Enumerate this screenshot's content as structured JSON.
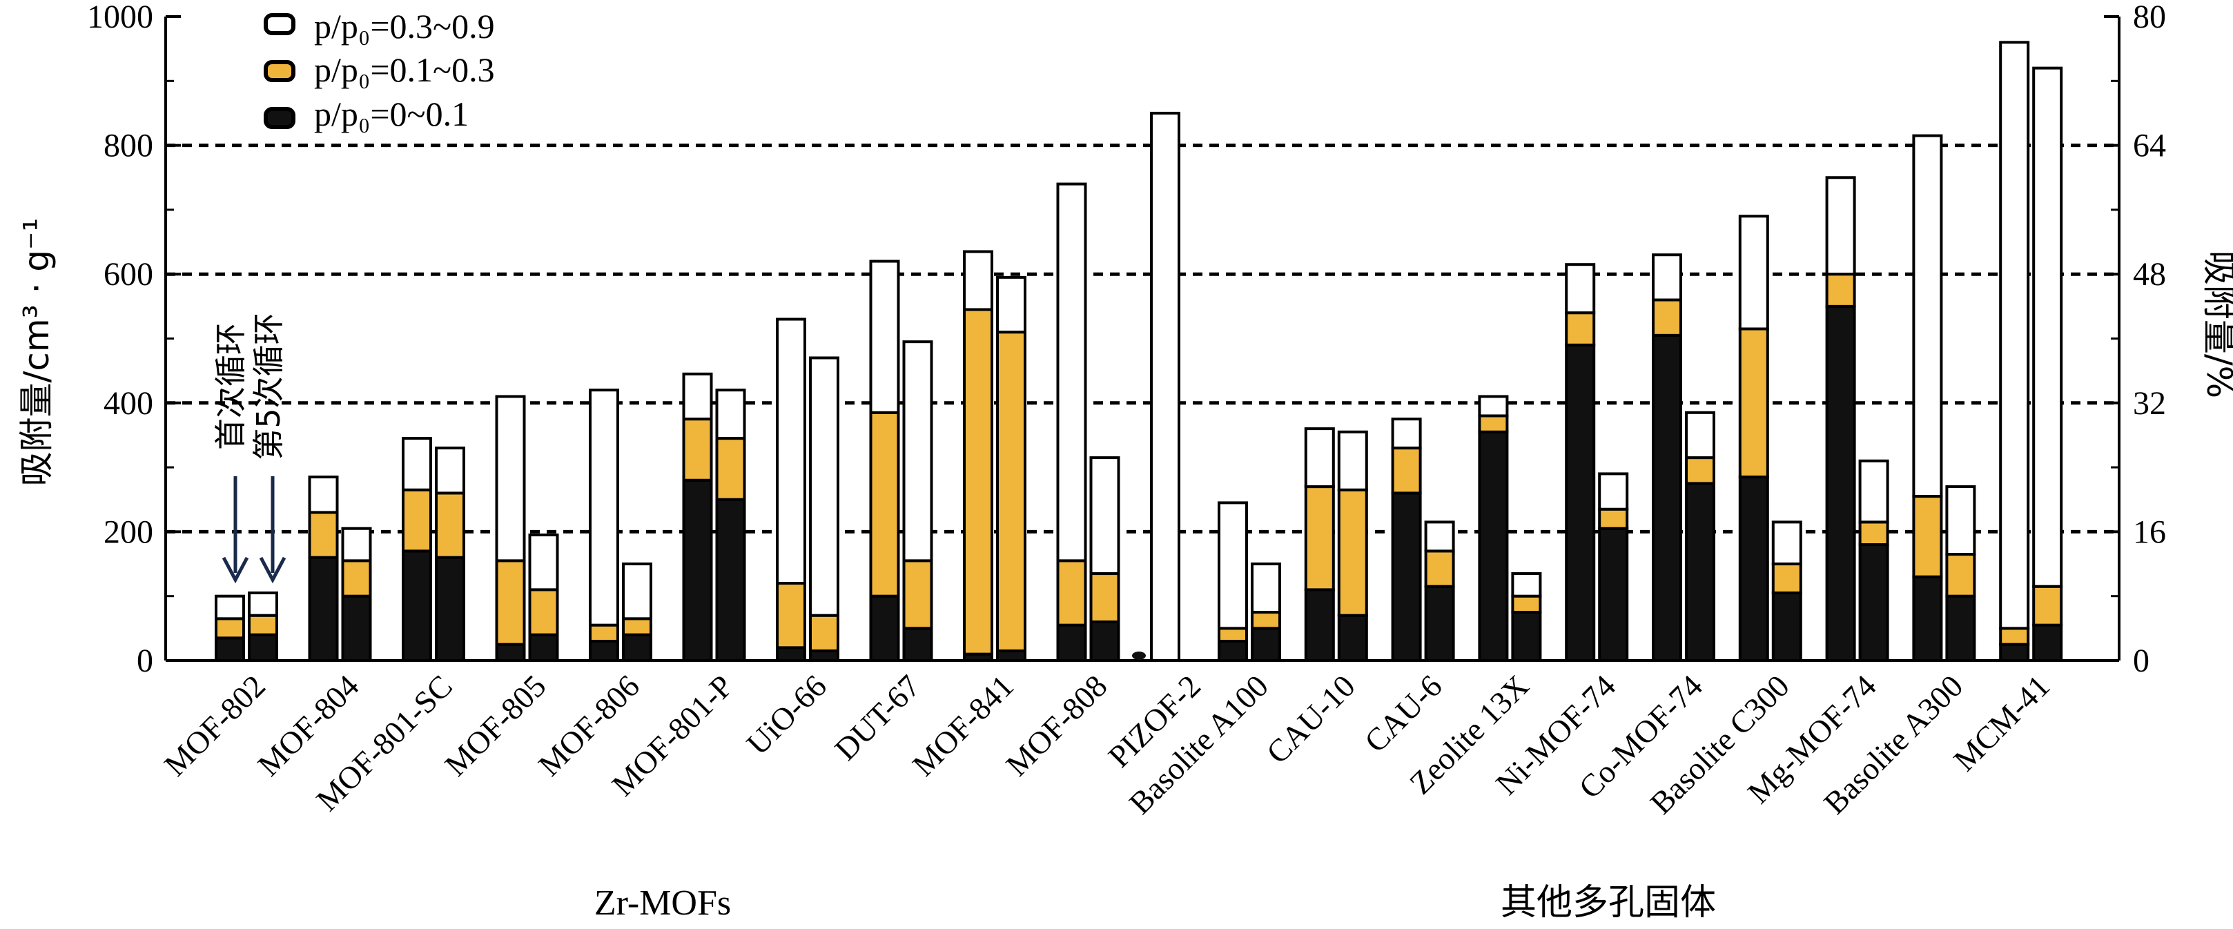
{
  "chart_data": {
    "type": "bar",
    "subtype": "stacked-grouped",
    "ylabel_left": "吸附量/cm³ · g⁻¹",
    "ylabel_right": "吸附量/%",
    "ylim_left": [
      0,
      1000
    ],
    "ylim_right": [
      0,
      80
    ],
    "yticks_left": [
      "0",
      "200",
      "400",
      "600",
      "800",
      "1000"
    ],
    "yticks_right": [
      "0",
      "16",
      "32",
      "48",
      "64",
      "80"
    ],
    "gridlines_at": [
      200,
      400,
      600,
      800
    ],
    "colors": {
      "low": "#111111",
      "mid": "#f0b63c",
      "high": "#ffffff"
    },
    "legend": [
      {
        "key": "high",
        "label": "p/p₀=0.3~0.9"
      },
      {
        "key": "mid",
        "label": "p/p₀=0.1~0.3"
      },
      {
        "key": "low",
        "label": "p/p₀=0~0.1"
      }
    ],
    "annotations": {
      "first_cycle": "首次循环",
      "fifth_cycle": "第5次循环"
    },
    "groups": [
      {
        "label": "Zr-MOFs",
        "categories": [
          {
            "name": "MOF-802",
            "first": [
              35,
              65,
              100
            ],
            "fifth": [
              40,
              70,
              105
            ]
          },
          {
            "name": "MOF-804",
            "first": [
              160,
              230,
              285
            ],
            "fifth": [
              100,
              155,
              205
            ]
          },
          {
            "name": "MOF-801-SC",
            "first": [
              170,
              265,
              345
            ],
            "fifth": [
              160,
              260,
              330
            ]
          },
          {
            "name": "MOF-805",
            "first": [
              25,
              155,
              410
            ],
            "fifth": [
              40,
              110,
              195
            ]
          },
          {
            "name": "MOF-806",
            "first": [
              30,
              55,
              420
            ],
            "fifth": [
              40,
              65,
              150
            ]
          },
          {
            "name": "MOF-801-P",
            "first": [
              280,
              375,
              445
            ],
            "fifth": [
              250,
              345,
              420
            ]
          },
          {
            "name": "UiO-66",
            "first": [
              20,
              120,
              530
            ],
            "fifth": [
              15,
              70,
              470
            ]
          },
          {
            "name": "DUT-67",
            "first": [
              100,
              385,
              620
            ],
            "fifth": [
              50,
              155,
              495
            ]
          },
          {
            "name": "MOF-841",
            "first": [
              10,
              545,
              635
            ],
            "fifth": [
              15,
              510,
              595
            ]
          },
          {
            "name": "MOF-808",
            "first": [
              55,
              155,
              740
            ],
            "fifth": [
              60,
              135,
              315
            ]
          },
          {
            "name": "PIZOF-2",
            "first": [
              0,
              0,
              850
            ],
            "fifth": null
          }
        ]
      },
      {
        "label": "其他多孔固体",
        "categories": [
          {
            "name": "Basolite A100",
            "first": [
              30,
              50,
              245
            ],
            "fifth": [
              50,
              75,
              150
            ]
          },
          {
            "name": "CAU-10",
            "first": [
              110,
              270,
              360
            ],
            "fifth": [
              70,
              265,
              355
            ]
          },
          {
            "name": "CAU-6",
            "first": [
              260,
              330,
              375
            ],
            "fifth": [
              115,
              170,
              215
            ]
          },
          {
            "name": "Zeolite 13X",
            "first": [
              355,
              380,
              410
            ],
            "fifth": [
              75,
              100,
              135
            ]
          },
          {
            "name": "Ni-MOF-74",
            "first": [
              490,
              540,
              615
            ],
            "fifth": [
              205,
              235,
              290
            ]
          },
          {
            "name": "Co-MOF-74",
            "first": [
              505,
              560,
              630
            ],
            "fifth": [
              275,
              315,
              385
            ]
          },
          {
            "name": "Basolite C300",
            "first": [
              285,
              515,
              690
            ],
            "fifth": [
              105,
              150,
              215
            ]
          },
          {
            "name": "Mg-MOF-74",
            "first": [
              550,
              600,
              750
            ],
            "fifth": [
              180,
              215,
              310
            ]
          },
          {
            "name": "Basolite A300",
            "first": [
              130,
              255,
              815
            ],
            "fifth": [
              100,
              165,
              270
            ]
          },
          {
            "name": "MCM-41",
            "first": [
              25,
              50,
              960
            ],
            "fifth": [
              55,
              115,
              920
            ]
          }
        ]
      }
    ]
  }
}
